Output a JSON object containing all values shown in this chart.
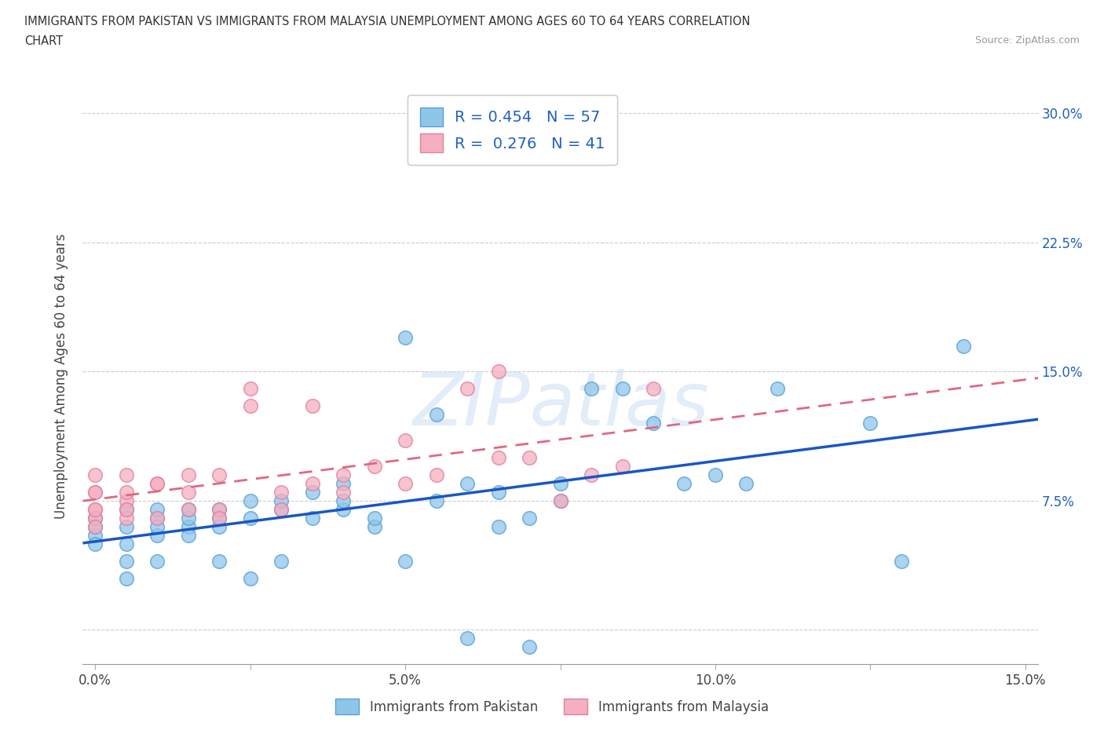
{
  "title_line1": "IMMIGRANTS FROM PAKISTAN VS IMMIGRANTS FROM MALAYSIA UNEMPLOYMENT AMONG AGES 60 TO 64 YEARS CORRELATION",
  "title_line2": "CHART",
  "source_text": "Source: ZipAtlas.com",
  "ylabel": "Unemployment Among Ages 60 to 64 years",
  "xlim": [
    -0.002,
    0.152
  ],
  "ylim": [
    -0.02,
    0.315
  ],
  "xticks": [
    0.0,
    0.025,
    0.05,
    0.075,
    0.1,
    0.125,
    0.15
  ],
  "xticklabels": [
    "0.0%",
    "",
    "5.0%",
    "",
    "10.0%",
    "",
    "15.0%"
  ],
  "yticks": [
    0.0,
    0.075,
    0.15,
    0.225,
    0.3
  ],
  "yticklabels_right": [
    "",
    "7.5%",
    "15.0%",
    "22.5%",
    "30.0%"
  ],
  "pakistan_color": "#8ec6ea",
  "pakistan_edge": "#5a9fd4",
  "malaysia_color": "#f5afc0",
  "malaysia_edge": "#e080a0",
  "pakistan_line_color": "#1a56c4",
  "malaysia_line_color": "#e06880",
  "pakistan_R": 0.454,
  "pakistan_N": 57,
  "malaysia_R": 0.276,
  "malaysia_N": 41,
  "legend_label_pakistan": "Immigrants from Pakistan",
  "legend_label_malaysia": "Immigrants from Malaysia",
  "watermark": "ZIPatlas",
  "watermark_color": "#ccdff5",
  "grid_color": "#cccccc",
  "background_color": "#ffffff",
  "pakistan_x": [
    0.0,
    0.0,
    0.0,
    0.0,
    0.005,
    0.005,
    0.005,
    0.005,
    0.005,
    0.01,
    0.01,
    0.01,
    0.01,
    0.01,
    0.015,
    0.015,
    0.015,
    0.015,
    0.02,
    0.02,
    0.02,
    0.02,
    0.025,
    0.025,
    0.025,
    0.03,
    0.03,
    0.03,
    0.035,
    0.035,
    0.04,
    0.04,
    0.04,
    0.045,
    0.045,
    0.05,
    0.05,
    0.055,
    0.055,
    0.06,
    0.06,
    0.065,
    0.065,
    0.07,
    0.07,
    0.075,
    0.075,
    0.08,
    0.085,
    0.09,
    0.095,
    0.1,
    0.105,
    0.11,
    0.125,
    0.13,
    0.14
  ],
  "pakistan_y": [
    0.055,
    0.065,
    0.05,
    0.06,
    0.06,
    0.07,
    0.05,
    0.04,
    0.03,
    0.055,
    0.065,
    0.06,
    0.07,
    0.04,
    0.06,
    0.055,
    0.065,
    0.07,
    0.065,
    0.07,
    0.06,
    0.04,
    0.075,
    0.065,
    0.03,
    0.07,
    0.075,
    0.04,
    0.065,
    0.08,
    0.085,
    0.07,
    0.075,
    0.06,
    0.065,
    0.17,
    0.04,
    0.125,
    0.075,
    0.085,
    -0.005,
    0.08,
    0.06,
    0.065,
    -0.01,
    0.085,
    0.075,
    0.14,
    0.14,
    0.12,
    0.085,
    0.09,
    0.085,
    0.14,
    0.12,
    0.04,
    0.165
  ],
  "malaysia_x": [
    0.0,
    0.0,
    0.0,
    0.0,
    0.0,
    0.005,
    0.005,
    0.005,
    0.005,
    0.01,
    0.01,
    0.01,
    0.015,
    0.015,
    0.015,
    0.02,
    0.02,
    0.02,
    0.025,
    0.025,
    0.03,
    0.03,
    0.035,
    0.035,
    0.04,
    0.04,
    0.045,
    0.05,
    0.05,
    0.055,
    0.06,
    0.065,
    0.065,
    0.07,
    0.075,
    0.08,
    0.085,
    0.09,
    0.0,
    0.0,
    0.005
  ],
  "malaysia_y": [
    0.07,
    0.08,
    0.065,
    0.09,
    0.06,
    0.075,
    0.08,
    0.065,
    0.09,
    0.065,
    0.085,
    0.085,
    0.08,
    0.07,
    0.09,
    0.09,
    0.07,
    0.065,
    0.13,
    0.14,
    0.08,
    0.07,
    0.085,
    0.13,
    0.08,
    0.09,
    0.095,
    0.085,
    0.11,
    0.09,
    0.14,
    0.1,
    0.15,
    0.1,
    0.075,
    0.09,
    0.095,
    0.14,
    0.07,
    0.08,
    0.07
  ]
}
